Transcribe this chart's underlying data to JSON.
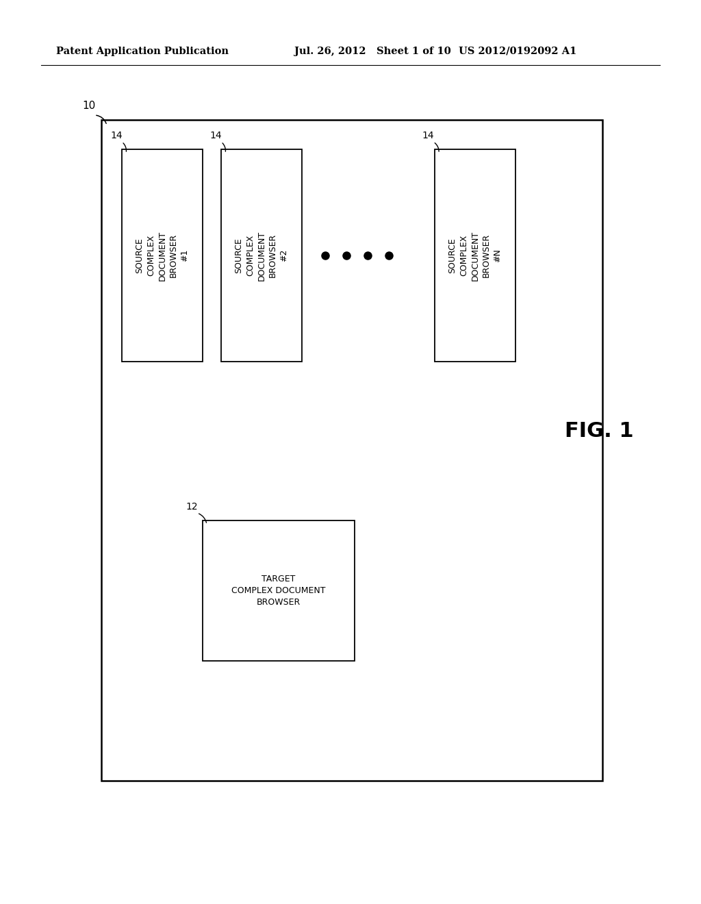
{
  "bg_color": "#ffffff",
  "header_left": "Patent Application Publication",
  "header_mid": "Jul. 26, 2012   Sheet 1 of 10",
  "header_right": "US 2012/0192092 A1",
  "fig_label": "FIG. 1",
  "outer_label": "10",
  "source_boxes": [
    {
      "label": "SOURCE\nCOMPLEX\nDOCUMENT\nBROWSER\n#1",
      "ref": "14"
    },
    {
      "label": "SOURCE\nCOMPLEX\nDOCUMENT\nBROWSER\n#2",
      "ref": "14"
    },
    {
      "label": "SOURCE\nCOMPLEX\nDOCUMENT\nBROWSER\n#N",
      "ref": "14"
    }
  ],
  "target_box_label": "TARGET\nCOMPLEX DOCUMENT\nBROWSER",
  "target_ref": "12",
  "num_dots": 4
}
